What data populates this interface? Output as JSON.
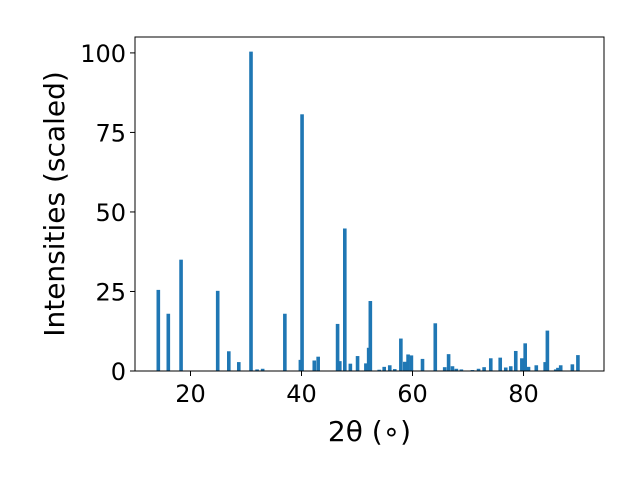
{
  "chart_data": {
    "type": "bar",
    "title": "",
    "xlabel": "2θ (∘)",
    "ylabel": "Intensities (scaled)",
    "xlim": [
      10,
      94.5
    ],
    "ylim": [
      0,
      105
    ],
    "xticks": [
      20,
      40,
      60,
      80
    ],
    "yticks": [
      0,
      25,
      50,
      75,
      100
    ],
    "bar_width": 0.65,
    "color": "#1f77b4",
    "grid": false,
    "x": [
      14.2,
      16.0,
      18.3,
      24.9,
      26.9,
      28.7,
      30.9,
      32.0,
      33.0,
      37.0,
      39.8,
      40.1,
      42.3,
      43.0,
      46.5,
      46.9,
      47.8,
      48.8,
      50.1,
      51.6,
      52.1,
      52.4,
      54.0,
      54.9,
      55.9,
      56.8,
      57.9,
      58.6,
      59.2,
      59.8,
      61.8,
      64.1,
      65.8,
      66.5,
      67.2,
      67.9,
      68.8,
      70.8,
      71.9,
      72.9,
      74.1,
      75.8,
      76.8,
      77.7,
      78.6,
      79.7,
      80.3,
      80.9,
      82.3,
      83.9,
      84.3,
      85.8,
      86.2,
      86.7,
      88.8,
      89.8
    ],
    "values": [
      25.5,
      18.0,
      35.0,
      25.2,
      6.2,
      2.8,
      100.4,
      0.5,
      0.7,
      18.0,
      3.5,
      80.7,
      3.3,
      4.5,
      14.8,
      3.1,
      44.8,
      2.3,
      4.7,
      2.4,
      7.3,
      22.0,
      0.4,
      1.3,
      1.8,
      0.6,
      10.2,
      2.9,
      5.2,
      4.9,
      3.8,
      15.0,
      1.2,
      5.3,
      1.5,
      0.7,
      0.5,
      0.3,
      0.7,
      1.2,
      4.0,
      4.2,
      1.1,
      1.5,
      6.3,
      4.0,
      8.7,
      1.3,
      1.8,
      2.8,
      12.7,
      0.5,
      1.0,
      1.8,
      2.1,
      5.0
    ]
  }
}
